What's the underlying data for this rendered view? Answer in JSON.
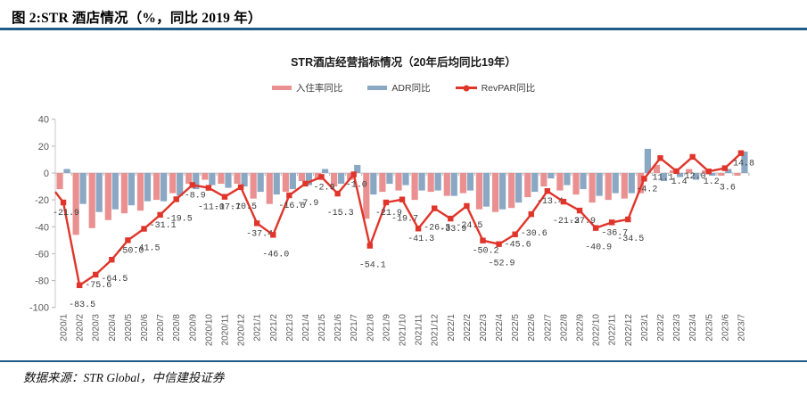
{
  "header": {
    "title": "图 2:STR 酒店情况（%，同比 2019 年）"
  },
  "footer": {
    "source": "数据来源：STR Global，中信建投证券"
  },
  "accent_colors": {
    "divider_blue": "#1F5B87",
    "occupancy_pink": "#EB9090",
    "adr_blue": "#8AA7C3",
    "revpar_red": "#E0352B"
  },
  "chart_data": {
    "type": "bar",
    "title": "STR酒店经营指标情况（20年后均同比19年）",
    "xlabel": "",
    "ylabel": "",
    "ylim": [
      -100,
      40
    ],
    "yticks": [
      40,
      20,
      0,
      -20,
      -40,
      -60,
      -80,
      -100
    ],
    "grid": false,
    "legend_position": "top",
    "categories": [
      "2020/1",
      "2020/2",
      "2020/3",
      "2020/4",
      "2020/5",
      "2020/6",
      "2020/7",
      "2020/8",
      "2020/9",
      "2020/10",
      "2020/11",
      "2020/12",
      "2021/1",
      "2021/2",
      "2021/3",
      "2021/4",
      "2021/5",
      "2021/6",
      "2021/7",
      "2021/8",
      "2021/9",
      "2021/10",
      "2021/11",
      "2021/12",
      "2022/1",
      "2022/2",
      "2022/3",
      "2022/4",
      "2022/5",
      "2022/6",
      "2022/7",
      "2022/8",
      "2022/9",
      "2022/10",
      "2022/11",
      "2022/12",
      "2023/1",
      "2023/2",
      "2023/3",
      "2023/4",
      "2023/5",
      "2023/6",
      "2023/7"
    ],
    "series": [
      {
        "name": "入住率同比",
        "type": "bar",
        "color": "#EB9090",
        "values": [
          -12,
          -46,
          -41,
          -35,
          -30,
          -28,
          -20,
          -15,
          -8,
          -5,
          -8,
          -8,
          -19,
          -23,
          -14,
          -6,
          -5,
          -10,
          -5,
          -34,
          -14,
          -13,
          -20,
          -14,
          -17,
          -15,
          -27,
          -29,
          -26,
          -18,
          -10,
          -13,
          -16,
          -22,
          -20,
          -19,
          -15,
          6,
          2,
          3,
          2,
          -2,
          -2
        ]
      },
      {
        "name": "ADR同比",
        "type": "bar",
        "color": "#8AA7C3",
        "values": [
          3,
          -23,
          -29,
          -27,
          -24,
          -21,
          -21,
          -17,
          -12,
          -9,
          -11,
          -10,
          -14,
          -16,
          -12,
          -9,
          3,
          -8,
          6,
          -16,
          -8,
          -9,
          -13,
          -13,
          -17,
          -13,
          -25,
          -27,
          -22,
          -14,
          -4,
          -9,
          -12,
          -17,
          -15,
          -15,
          18,
          -6,
          -3,
          -5,
          -2,
          3,
          16
        ]
      },
      {
        "name": "RevPAR同比",
        "type": "line",
        "color": "#E0352B",
        "lead_in": -14,
        "labeled": true,
        "values": [
          -21.9,
          -83.5,
          -75.6,
          -64.5,
          -50.0,
          -41.5,
          -31.1,
          -19.5,
          -8.9,
          -11.0,
          -17.7,
          -10.5,
          -37.4,
          -46.0,
          -16.6,
          -7.9,
          -2.9,
          -15.3,
          -1.0,
          -54.1,
          -21.9,
          -19.7,
          -41.3,
          -26.3,
          -33.9,
          -24.5,
          -50.2,
          -52.9,
          -45.6,
          -30.6,
          -13.4,
          -21.3,
          -27.9,
          -40.9,
          -36.7,
          -34.5,
          -4.2,
          11.1,
          1.4,
          12.0,
          1.2,
          3.6,
          14.8
        ]
      }
    ]
  }
}
